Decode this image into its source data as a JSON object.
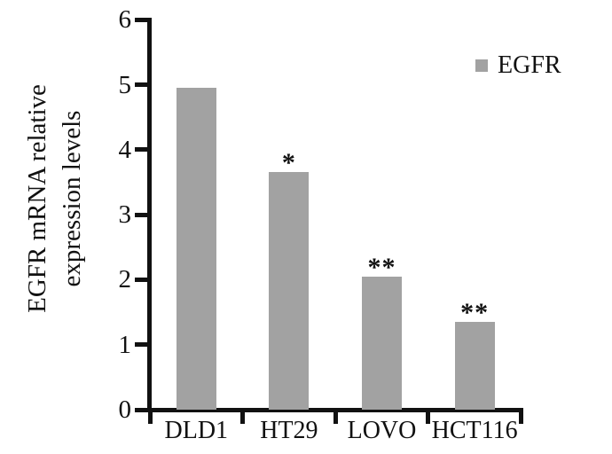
{
  "chart_data": {
    "type": "bar",
    "title": "",
    "categories": [
      "DLD1",
      "HT29",
      "LOVO",
      "HCT116"
    ],
    "series": [
      {
        "name": "EGFR",
        "values": [
          4.95,
          3.65,
          2.05,
          1.35
        ]
      }
    ],
    "significance_markers": [
      "",
      "*",
      "**",
      "**"
    ],
    "ylabel": "EGFR mRNA relative expression levels",
    "ylabel_lines": [
      "EGFR mRNA relative",
      "expression levels"
    ],
    "xlabel": "",
    "ylim": [
      0,
      6
    ],
    "yticks": [
      0,
      1,
      2,
      3,
      4,
      5,
      6
    ],
    "grid": false,
    "legend": {
      "label": "EGFR",
      "position": "top-right",
      "swatch_color": "#a2a2a2"
    },
    "bar_color": "#a2a2a2",
    "axis_color": "#111111",
    "background_color": "#ffffff"
  }
}
